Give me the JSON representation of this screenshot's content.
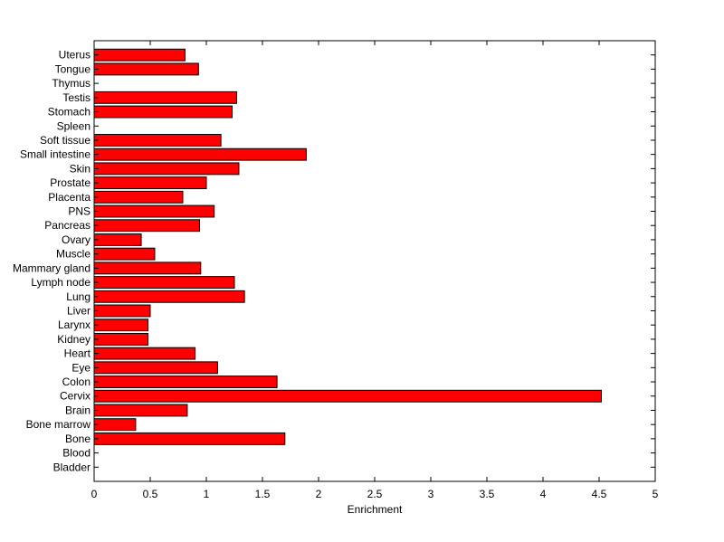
{
  "chart_data": {
    "type": "bar",
    "orientation": "horizontal",
    "categories": [
      "Bladder",
      "Blood",
      "Bone",
      "Bone marrow",
      "Brain",
      "Cervix",
      "Colon",
      "Eye",
      "Heart",
      "Kidney",
      "Larynx",
      "Liver",
      "Lung",
      "Lymph node",
      "Mammary gland",
      "Muscle",
      "Ovary",
      "Pancreas",
      "PNS",
      "Placenta",
      "Prostate",
      "Skin",
      "Small intestine",
      "Soft tissue",
      "Spleen",
      "Stomach",
      "Testis",
      "Thymus",
      "Tongue",
      "Uterus"
    ],
    "values": [
      0,
      0,
      1.7,
      0.37,
      0.83,
      4.52,
      1.63,
      1.1,
      0.9,
      0.48,
      0.48,
      0.5,
      1.34,
      1.25,
      0.95,
      0.54,
      0.42,
      0.94,
      1.07,
      0.79,
      1.0,
      1.29,
      1.89,
      1.13,
      0,
      1.23,
      1.27,
      0,
      0.93,
      0.81
    ],
    "xlabel": "Enrichment",
    "ylabel": "",
    "title": "",
    "xlim": [
      0,
      5
    ],
    "xticks": [
      "0",
      "0.5",
      "1",
      "1.5",
      "2",
      "2.5",
      "3",
      "3.5",
      "4",
      "4.5",
      "5"
    ],
    "grid": false,
    "legend": "none",
    "colors": {
      "bar_fill": "#ff0000",
      "bar_edge": "#000000",
      "axes": "#000000"
    }
  }
}
